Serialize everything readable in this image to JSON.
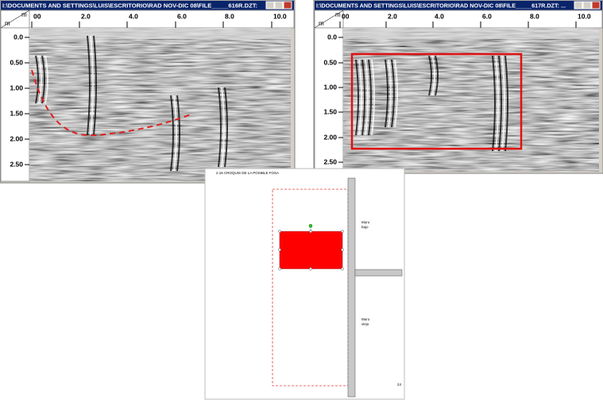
{
  "windows": [
    {
      "title": "I:\\DOCUMENTS AND SETTINGS\\LUIS\\ESCRITORIO\\RAD NOV-DIC 08\\FILE_____616R.DZT:",
      "x_unit": "m",
      "y_unit": "m",
      "xticks": [
        "00",
        "2.0",
        "4.0",
        "6.0",
        "8.0",
        "10.0"
      ],
      "yticks": [
        "0.0",
        "0.50",
        "1.00",
        "1.50",
        "2.00",
        "2.50"
      ]
    },
    {
      "title": "I:\\DOCUMENTS AND SETTINGS\\LUIS\\ESCRITORIO\\RAD NOV-DIC 08\\FILE_____617R.DZT:  ...",
      "x_unit": "m",
      "y_unit": "m",
      "xticks": [
        "00",
        "2.0",
        "4.0",
        "6.0",
        "8.0",
        "10.0"
      ],
      "yticks": [
        "0.0",
        "0.50",
        "1.00",
        "1.50",
        "2.00",
        "2.50"
      ]
    }
  ],
  "document": {
    "title": "2.16    CROQUIS DE LA POSIBLE FOSA",
    "wall_top": [
      "Muro",
      "bajo"
    ],
    "wall_bottom": [
      "Muro",
      "viejo"
    ],
    "page_number": "24"
  }
}
